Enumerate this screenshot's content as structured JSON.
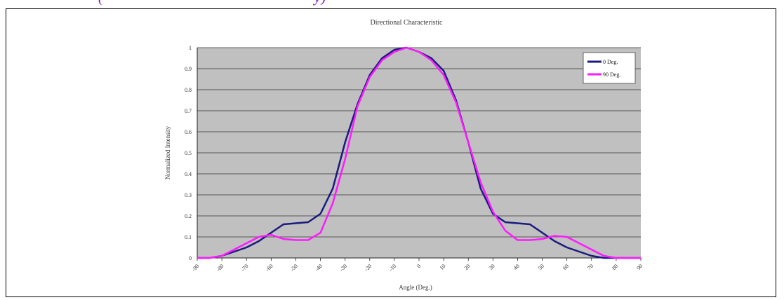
{
  "page": {
    "header_fragment": "(",
    "header_fragment_2": "y)"
  },
  "chart_data": {
    "type": "line",
    "title": "Directional Characteristic",
    "xlabel": "Angle (Deg.)",
    "ylabel": "Normalized Intensity",
    "x": [
      -90,
      -85,
      -80,
      -75,
      -70,
      -65,
      -60,
      -55,
      -50,
      -45,
      -40,
      -35,
      -30,
      -25,
      -20,
      -15,
      -10,
      -5,
      0,
      5,
      10,
      15,
      20,
      25,
      30,
      35,
      40,
      45,
      50,
      55,
      60,
      65,
      70,
      75,
      80,
      85,
      90
    ],
    "x_tick_labels": [
      "-90",
      "-80",
      "-70",
      "-60",
      "-50",
      "-40",
      "-30",
      "-20",
      "-10",
      "0",
      "10",
      "20",
      "30",
      "40",
      "50",
      "60",
      "70",
      "80",
      "90"
    ],
    "y_tick_labels": [
      "0",
      "0.1",
      "0.2",
      "0.3",
      "0.4",
      "0.5",
      "0.6",
      "0.7",
      "0.8",
      "0.9",
      "1"
    ],
    "xlim": [
      -90,
      90
    ],
    "ylim": [
      0,
      1
    ],
    "grid": "horizontal",
    "legend_placement": "top-right",
    "series": [
      {
        "name": "0 Deg.",
        "color": "#1a1a80",
        "values": [
          0,
          0,
          0.01,
          0.03,
          0.05,
          0.08,
          0.12,
          0.16,
          0.165,
          0.17,
          0.21,
          0.33,
          0.55,
          0.73,
          0.87,
          0.95,
          0.99,
          1.0,
          0.98,
          0.95,
          0.89,
          0.75,
          0.55,
          0.33,
          0.21,
          0.17,
          0.165,
          0.16,
          0.12,
          0.08,
          0.05,
          0.03,
          0.01,
          0,
          0,
          0,
          0
        ]
      },
      {
        "name": "90 Deg.",
        "color": "#ff1aff",
        "values": [
          0,
          0,
          0.01,
          0.04,
          0.07,
          0.1,
          0.11,
          0.09,
          0.085,
          0.085,
          0.12,
          0.26,
          0.47,
          0.72,
          0.86,
          0.94,
          0.98,
          1.0,
          0.98,
          0.94,
          0.87,
          0.74,
          0.55,
          0.36,
          0.22,
          0.13,
          0.085,
          0.085,
          0.09,
          0.105,
          0.1,
          0.07,
          0.04,
          0.01,
          0,
          0,
          0
        ]
      }
    ]
  }
}
